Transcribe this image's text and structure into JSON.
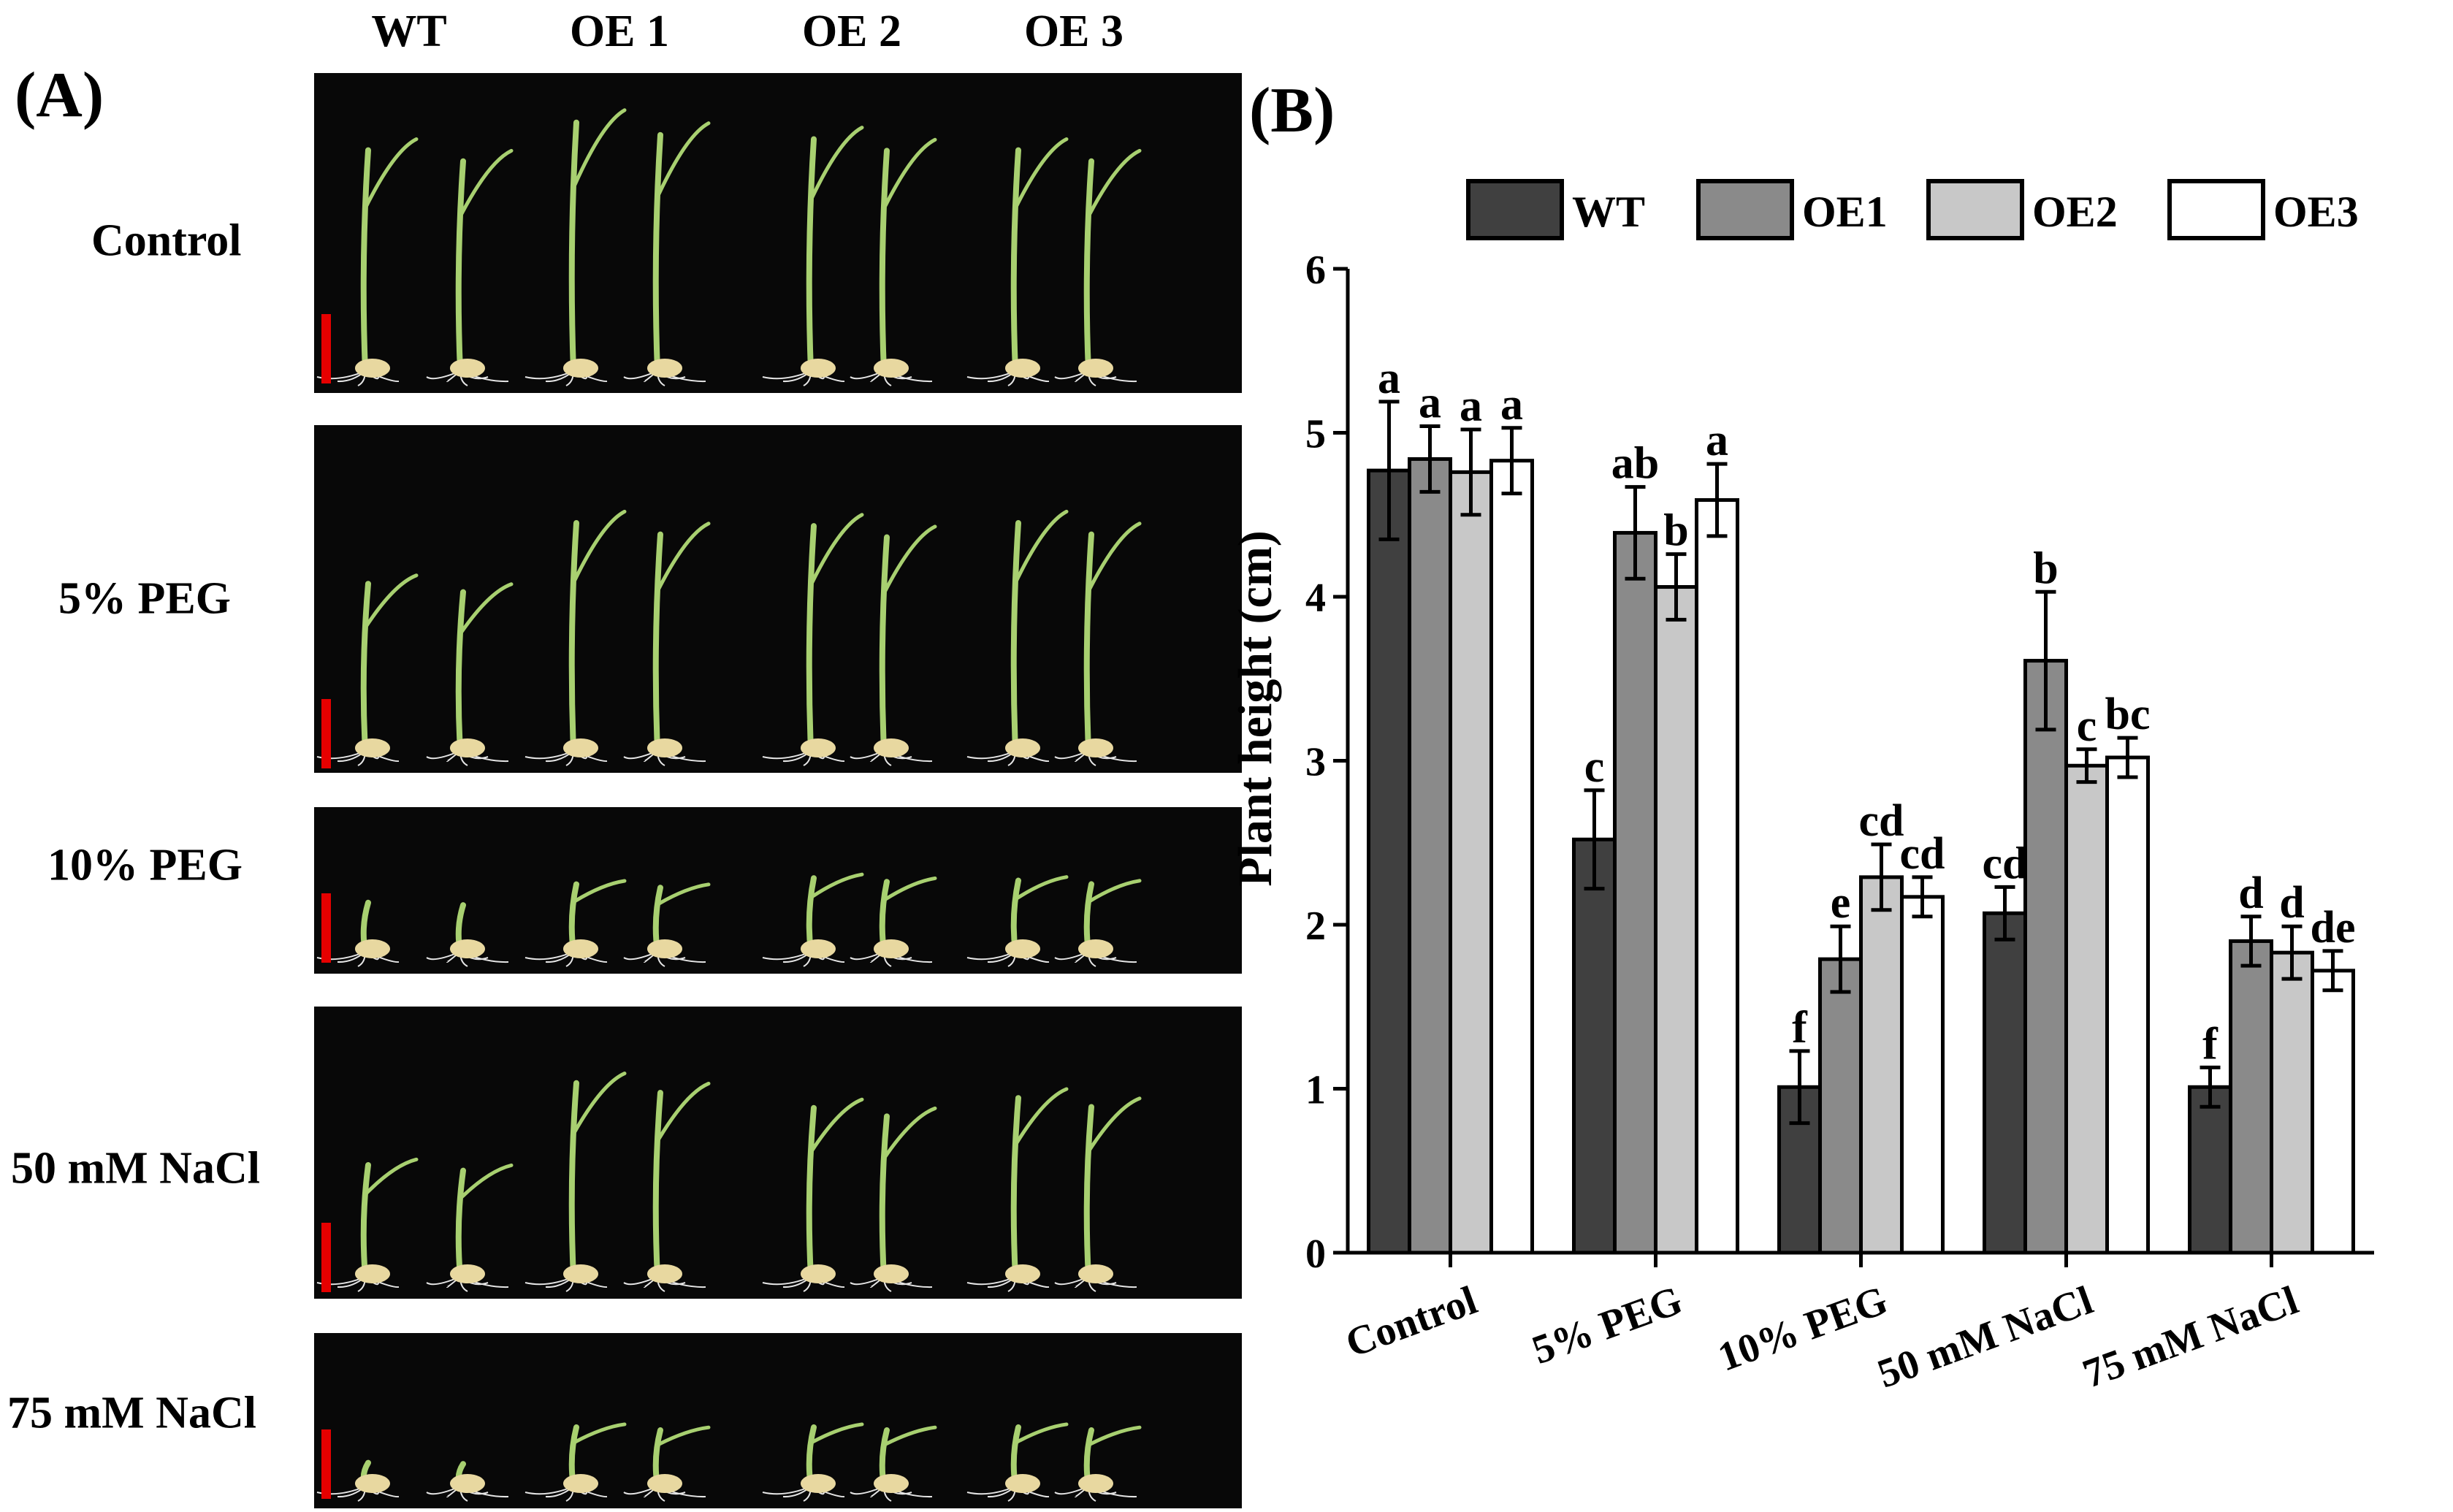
{
  "panel_a": {
    "label": "(A)",
    "columns": [
      "WT",
      "OE 1",
      "OE 2",
      "OE 3"
    ],
    "rows": [
      "Control",
      "5% PEG",
      "10% PEG",
      "50 mM NaCl",
      "75 mM NaCl"
    ],
    "seedling_height_fraction": [
      [
        0.8,
        0.9,
        0.84,
        0.8
      ],
      [
        0.55,
        0.75,
        0.74,
        0.75
      ],
      [
        0.4,
        0.55,
        0.6,
        0.58
      ],
      [
        0.45,
        0.78,
        0.68,
        0.72
      ],
      [
        0.18,
        0.45,
        0.45,
        0.45
      ]
    ]
  },
  "colors": {
    "WT": "#404040",
    "OE1": "#8a8a8a",
    "OE2": "#c8c8c8",
    "OE3": "#ffffff",
    "scale_bar": "#e60000",
    "photo_bg": "#080808",
    "seedling": "#a8d070",
    "seed": "#e8d8a0"
  },
  "chart_data": {
    "type": "bar",
    "panel_label": "(B)",
    "ylabel": "Plant height (cm)",
    "xlabel": "",
    "ylim": [
      0,
      6
    ],
    "yticks": [
      0,
      1,
      2,
      3,
      4,
      5,
      6
    ],
    "categories": [
      "Control",
      "5% PEG",
      "10% PEG",
      "50 mM NaCl",
      "75 mM NaCl"
    ],
    "legend_position": "top",
    "series": [
      {
        "name": "WT",
        "values": [
          4.77,
          2.52,
          1.01,
          2.07,
          1.01
        ],
        "errors": [
          0.42,
          0.3,
          0.22,
          0.16,
          0.12
        ],
        "letters": [
          "a",
          "c",
          "f",
          "cd",
          "f"
        ]
      },
      {
        "name": "OE1",
        "values": [
          4.84,
          4.39,
          1.79,
          3.61,
          1.9
        ],
        "errors": [
          0.2,
          0.28,
          0.2,
          0.42,
          0.15
        ],
        "letters": [
          "a",
          "ab",
          "e",
          "b",
          "d"
        ]
      },
      {
        "name": "OE2",
        "values": [
          4.76,
          4.06,
          2.29,
          2.97,
          1.83
        ],
        "errors": [
          0.26,
          0.2,
          0.2,
          0.1,
          0.16
        ],
        "letters": [
          "a",
          "b",
          "cd",
          "c",
          "d"
        ]
      },
      {
        "name": "OE3",
        "values": [
          4.83,
          4.59,
          2.17,
          3.02,
          1.72
        ],
        "errors": [
          0.2,
          0.22,
          0.12,
          0.12,
          0.12
        ],
        "letters": [
          "a",
          "a",
          "cd",
          "bc",
          "de"
        ]
      }
    ]
  }
}
